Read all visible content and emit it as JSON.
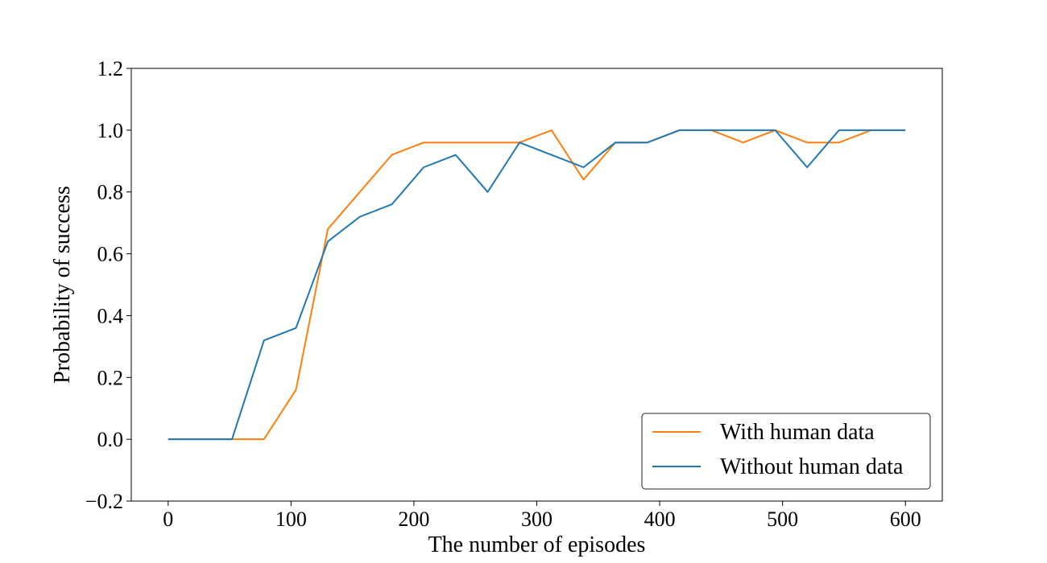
{
  "chart_data": {
    "type": "line",
    "title": "",
    "xlabel": "The number of episodes",
    "ylabel": "Probability of success",
    "xlim": [
      -30,
      630
    ],
    "ylim": [
      -0.2,
      1.2
    ],
    "xticks": [
      0,
      100,
      200,
      300,
      400,
      500,
      600
    ],
    "yticks": [
      -0.2,
      0.0,
      0.2,
      0.4,
      0.6,
      0.8,
      1.0,
      1.2
    ],
    "xtick_labels": [
      "0",
      "100",
      "200",
      "300",
      "400",
      "500",
      "600"
    ],
    "ytick_labels": [
      "−0.2",
      "0.0",
      "0.2",
      "0.4",
      "0.6",
      "0.8",
      "1.0",
      "1.2"
    ],
    "grid": false,
    "legend_position": "lower-right",
    "series": [
      {
        "name": "With human data",
        "color": "#ff7f0e",
        "x": [
          0,
          26,
          52,
          78,
          104,
          130,
          156,
          182,
          208,
          234,
          260,
          286,
          312,
          338,
          364,
          390,
          416,
          442,
          468,
          494,
          520,
          546,
          572,
          600
        ],
        "y": [
          0.0,
          0.0,
          0.0,
          0.0,
          0.16,
          0.68,
          0.8,
          0.92,
          0.96,
          0.96,
          0.96,
          0.96,
          1.0,
          0.84,
          0.96,
          0.96,
          1.0,
          1.0,
          0.96,
          1.0,
          0.96,
          0.96,
          1.0,
          1.0
        ]
      },
      {
        "name": "Without human data",
        "color": "#1f77b4",
        "x": [
          0,
          26,
          52,
          78,
          104,
          130,
          156,
          182,
          208,
          234,
          260,
          286,
          312,
          338,
          364,
          390,
          416,
          442,
          468,
          494,
          520,
          546,
          572,
          600
        ],
        "y": [
          0.0,
          0.0,
          0.0,
          0.32,
          0.36,
          0.64,
          0.72,
          0.76,
          0.88,
          0.92,
          0.8,
          0.96,
          0.92,
          0.88,
          0.96,
          0.96,
          1.0,
          1.0,
          1.0,
          1.0,
          0.88,
          1.0,
          1.0,
          1.0
        ]
      }
    ]
  }
}
